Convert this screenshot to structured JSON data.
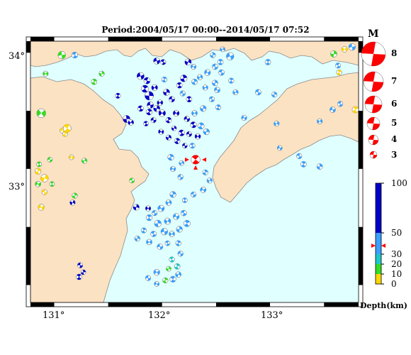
{
  "title": "Period:2004/05/17 00:00--2014/05/17 07:52",
  "lat_labels": [
    "34°",
    "33°"
  ],
  "lon_labels": [
    "131°",
    "132°",
    "133°"
  ],
  "legend": {
    "magnitude_header": "M",
    "magnitudes": [
      "8",
      "7",
      "6",
      "5",
      "4",
      "3"
    ],
    "depth_ticks": [
      "100",
      "50",
      "30",
      "20",
      "10",
      "0"
    ],
    "depth_unit": "Depth(km)"
  },
  "colors": {
    "land": "#fbe2c2",
    "sea": "#e0ffff",
    "coast": "#8a8a8a",
    "depth_0_10": "#ffd700",
    "depth_10_20": "#33dd22",
    "depth_20_30": "#1ec8c8",
    "depth_30_50": "#3aa0ff",
    "depth_50_100": "#0000c8",
    "highlight": "#ff0000"
  },
  "mechanisms": [
    {
      "lon": 130.92,
      "lat": 33.82,
      "m": 3.3,
      "depth": "green"
    },
    {
      "lon": 131.07,
      "lat": 33.98,
      "m": 3.9,
      "depth": "green"
    },
    {
      "lon": 131.19,
      "lat": 33.98,
      "m": 3.5,
      "depth": "lightblue"
    },
    {
      "lon": 131.37,
      "lat": 33.75,
      "m": 3.4,
      "depth": "green"
    },
    {
      "lon": 131.44,
      "lat": 33.82,
      "m": 3.3,
      "depth": "green"
    },
    {
      "lon": 130.88,
      "lat": 33.48,
      "m": 4.3,
      "depth": "green"
    },
    {
      "lon": 131.08,
      "lat": 33.33,
      "m": 3.4,
      "depth": "yellow"
    },
    {
      "lon": 131.12,
      "lat": 33.35,
      "m": 4.0,
      "depth": "yellow"
    },
    {
      "lon": 131.1,
      "lat": 33.3,
      "m": 3.2,
      "depth": "yellow"
    },
    {
      "lon": 131.28,
      "lat": 33.07,
      "m": 3.3,
      "depth": "green"
    },
    {
      "lon": 131.16,
      "lat": 33.1,
      "m": 3.2,
      "depth": "yellow"
    },
    {
      "lon": 130.96,
      "lat": 33.08,
      "m": 3.2,
      "depth": "green"
    },
    {
      "lon": 130.86,
      "lat": 33.04,
      "m": 3.2,
      "depth": "green"
    },
    {
      "lon": 130.85,
      "lat": 32.98,
      "m": 3.5,
      "depth": "yellow"
    },
    {
      "lon": 130.91,
      "lat": 32.92,
      "m": 3.9,
      "depth": "yellow"
    },
    {
      "lon": 130.85,
      "lat": 32.87,
      "m": 3.4,
      "depth": "green"
    },
    {
      "lon": 130.91,
      "lat": 32.8,
      "m": 3.3,
      "depth": "yellow"
    },
    {
      "lon": 130.98,
      "lat": 32.87,
      "m": 3.2,
      "depth": "green"
    },
    {
      "lon": 131.19,
      "lat": 32.77,
      "m": 3.3,
      "depth": "green"
    },
    {
      "lon": 131.17,
      "lat": 32.71,
      "m": 3.3,
      "depth": "blue"
    },
    {
      "lon": 130.88,
      "lat": 32.67,
      "m": 3.5,
      "depth": "yellow"
    },
    {
      "lon": 131.72,
      "lat": 32.9,
      "m": 3.2,
      "depth": "green"
    },
    {
      "lon": 131.59,
      "lat": 33.63,
      "m": 3.3,
      "depth": "blue"
    },
    {
      "lon": 131.67,
      "lat": 33.43,
      "m": 3.8,
      "depth": "blue"
    },
    {
      "lon": 131.71,
      "lat": 33.4,
      "m": 3.4,
      "depth": "blue"
    },
    {
      "lon": 131.8,
      "lat": 33.8,
      "m": 3.8,
      "depth": "blue"
    },
    {
      "lon": 131.86,
      "lat": 33.76,
      "m": 3.6,
      "depth": "blue"
    },
    {
      "lon": 131.84,
      "lat": 33.69,
      "m": 3.8,
      "depth": "blue"
    },
    {
      "lon": 131.88,
      "lat": 33.63,
      "m": 4.2,
      "depth": "blue"
    },
    {
      "lon": 131.93,
      "lat": 33.7,
      "m": 3.5,
      "depth": "blue"
    },
    {
      "lon": 131.95,
      "lat": 33.93,
      "m": 3.6,
      "depth": "blue"
    },
    {
      "lon": 132.01,
      "lat": 33.92,
      "m": 3.3,
      "depth": "blue"
    },
    {
      "lon": 132.02,
      "lat": 33.77,
      "m": 3.3,
      "depth": "lightblue"
    },
    {
      "lon": 132.04,
      "lat": 33.66,
      "m": 3.6,
      "depth": "blue"
    },
    {
      "lon": 131.98,
      "lat": 33.57,
      "m": 3.4,
      "depth": "blue"
    },
    {
      "lon": 131.89,
      "lat": 33.55,
      "m": 3.6,
      "depth": "blue"
    },
    {
      "lon": 131.8,
      "lat": 33.52,
      "m": 3.4,
      "depth": "blue"
    },
    {
      "lon": 131.88,
      "lat": 33.49,
      "m": 3.5,
      "depth": "blue"
    },
    {
      "lon": 131.95,
      "lat": 33.52,
      "m": 3.6,
      "depth": "blue"
    },
    {
      "lon": 132.0,
      "lat": 33.48,
      "m": 3.7,
      "depth": "blue"
    },
    {
      "lon": 131.92,
      "lat": 33.42,
      "m": 3.3,
      "depth": "blue"
    },
    {
      "lon": 131.85,
      "lat": 33.39,
      "m": 3.2,
      "depth": "blue"
    },
    {
      "lon": 132.06,
      "lat": 33.42,
      "m": 3.4,
      "depth": "blue"
    },
    {
      "lon": 132.11,
      "lat": 33.35,
      "m": 3.2,
      "depth": "blue"
    },
    {
      "lon": 132.13,
      "lat": 33.48,
      "m": 3.5,
      "depth": "blue"
    },
    {
      "lon": 132.09,
      "lat": 33.6,
      "m": 3.4,
      "depth": "blue"
    },
    {
      "lon": 132.16,
      "lat": 33.72,
      "m": 3.4,
      "depth": "blue"
    },
    {
      "lon": 132.2,
      "lat": 33.78,
      "m": 3.7,
      "depth": "blue"
    },
    {
      "lon": 132.24,
      "lat": 33.92,
      "m": 3.6,
      "depth": "blue"
    },
    {
      "lon": 132.29,
      "lat": 33.88,
      "m": 3.3,
      "depth": "lightblue"
    },
    {
      "lon": 132.19,
      "lat": 33.65,
      "m": 3.3,
      "depth": "lightblue"
    },
    {
      "lon": 132.25,
      "lat": 33.6,
      "m": 3.4,
      "depth": "blue"
    },
    {
      "lon": 132.3,
      "lat": 33.75,
      "m": 3.4,
      "depth": "lightblue"
    },
    {
      "lon": 132.35,
      "lat": 33.79,
      "m": 3.3,
      "depth": "lightblue"
    },
    {
      "lon": 132.42,
      "lat": 33.83,
      "m": 3.5,
      "depth": "lightblue"
    },
    {
      "lon": 132.49,
      "lat": 33.88,
      "m": 3.4,
      "depth": "lightblue"
    },
    {
      "lon": 132.54,
      "lat": 33.92,
      "m": 3.4,
      "depth": "lightblue"
    },
    {
      "lon": 132.47,
      "lat": 33.98,
      "m": 3.3,
      "depth": "lightblue"
    },
    {
      "lon": 132.56,
      "lat": 34.03,
      "m": 3.2,
      "depth": "lightblue"
    },
    {
      "lon": 132.63,
      "lat": 33.97,
      "m": 3.9,
      "depth": "lightblue"
    },
    {
      "lon": 132.55,
      "lat": 33.83,
      "m": 3.4,
      "depth": "lightblue"
    },
    {
      "lon": 132.64,
      "lat": 33.76,
      "m": 3.3,
      "depth": "lightblue"
    },
    {
      "lon": 132.49,
      "lat": 33.74,
      "m": 3.4,
      "depth": "lightblue"
    },
    {
      "lon": 132.4,
      "lat": 33.7,
      "m": 3.3,
      "depth": "lightblue"
    },
    {
      "lon": 132.51,
      "lat": 33.68,
      "m": 3.4,
      "depth": "lightblue"
    },
    {
      "lon": 132.46,
      "lat": 33.6,
      "m": 3.3,
      "depth": "lightblue"
    },
    {
      "lon": 132.52,
      "lat": 33.53,
      "m": 3.3,
      "depth": "lightblue"
    },
    {
      "lon": 132.38,
      "lat": 33.52,
      "m": 3.5,
      "depth": "lightblue"
    },
    {
      "lon": 132.3,
      "lat": 33.48,
      "m": 3.4,
      "depth": "lightblue"
    },
    {
      "lon": 132.23,
      "lat": 33.43,
      "m": 3.4,
      "depth": "blue"
    },
    {
      "lon": 132.29,
      "lat": 33.38,
      "m": 3.5,
      "depth": "blue"
    },
    {
      "lon": 132.36,
      "lat": 33.37,
      "m": 3.6,
      "depth": "lightblue"
    },
    {
      "lon": 132.41,
      "lat": 33.32,
      "m": 3.5,
      "depth": "lightblue"
    },
    {
      "lon": 132.33,
      "lat": 33.28,
      "m": 3.4,
      "depth": "blue"
    },
    {
      "lon": 132.25,
      "lat": 33.3,
      "m": 3.3,
      "depth": "blue"
    },
    {
      "lon": 132.18,
      "lat": 33.31,
      "m": 3.5,
      "depth": "blue"
    },
    {
      "lon": 132.14,
      "lat": 33.24,
      "m": 3.4,
      "depth": "blue"
    },
    {
      "lon": 132.06,
      "lat": 33.27,
      "m": 3.3,
      "depth": "blue"
    },
    {
      "lon": 131.99,
      "lat": 33.32,
      "m": 3.3,
      "depth": "blue"
    },
    {
      "lon": 132.21,
      "lat": 33.2,
      "m": 3.2,
      "depth": "blue"
    },
    {
      "lon": 132.28,
      "lat": 33.2,
      "m": 3.3,
      "depth": "lightblue"
    },
    {
      "lon": 132.08,
      "lat": 33.1,
      "m": 3.5,
      "depth": "lightblue"
    },
    {
      "lon": 132.18,
      "lat": 33.05,
      "m": 3.2,
      "depth": "lightblue"
    },
    {
      "lon": 132.1,
      "lat": 33.0,
      "m": 3.3,
      "depth": "lightblue"
    },
    {
      "lon": 132.17,
      "lat": 32.93,
      "m": 3.3,
      "depth": "lightblue"
    },
    {
      "lon": 132.31,
      "lat": 33.08,
      "m": 4.3,
      "depth": "highlight"
    },
    {
      "lon": 132.4,
      "lat": 32.97,
      "m": 3.3,
      "depth": "lightblue"
    },
    {
      "lon": 132.44,
      "lat": 32.9,
      "m": 3.3,
      "depth": "lightblue"
    },
    {
      "lon": 132.38,
      "lat": 32.82,
      "m": 3.4,
      "depth": "lightblue"
    },
    {
      "lon": 132.29,
      "lat": 32.78,
      "m": 3.3,
      "depth": "lightblue"
    },
    {
      "lon": 132.21,
      "lat": 32.73,
      "m": 3.2,
      "depth": "lightblue"
    },
    {
      "lon": 132.1,
      "lat": 32.78,
      "m": 3.5,
      "depth": "lightblue"
    },
    {
      "lon": 132.06,
      "lat": 32.71,
      "m": 3.4,
      "depth": "lightblue"
    },
    {
      "lon": 131.99,
      "lat": 32.66,
      "m": 3.6,
      "depth": "lightblue"
    },
    {
      "lon": 131.93,
      "lat": 32.62,
      "m": 3.3,
      "depth": "lightblue"
    },
    {
      "lon": 131.88,
      "lat": 32.58,
      "m": 3.5,
      "depth": "lightblue"
    },
    {
      "lon": 131.96,
      "lat": 32.53,
      "m": 3.7,
      "depth": "lightblue"
    },
    {
      "lon": 132.05,
      "lat": 32.55,
      "m": 3.6,
      "depth": "lightblue"
    },
    {
      "lon": 132.13,
      "lat": 32.59,
      "m": 3.5,
      "depth": "lightblue"
    },
    {
      "lon": 132.2,
      "lat": 32.62,
      "m": 3.4,
      "depth": "lightblue"
    },
    {
      "lon": 132.23,
      "lat": 32.53,
      "m": 3.6,
      "depth": "lightblue"
    },
    {
      "lon": 132.16,
      "lat": 32.48,
      "m": 3.5,
      "depth": "lightblue"
    },
    {
      "lon": 132.09,
      "lat": 32.44,
      "m": 3.4,
      "depth": "lightblue"
    },
    {
      "lon": 132.02,
      "lat": 32.46,
      "m": 3.7,
      "depth": "lightblue"
    },
    {
      "lon": 131.92,
      "lat": 32.44,
      "m": 3.4,
      "depth": "lightblue"
    },
    {
      "lon": 131.83,
      "lat": 32.47,
      "m": 3.3,
      "depth": "lightblue"
    },
    {
      "lon": 131.77,
      "lat": 32.4,
      "m": 3.3,
      "depth": "lightblue"
    },
    {
      "lon": 131.88,
      "lat": 32.37,
      "m": 3.4,
      "depth": "lightblue"
    },
    {
      "lon": 131.98,
      "lat": 32.33,
      "m": 3.4,
      "depth": "lightblue"
    },
    {
      "lon": 132.05,
      "lat": 32.36,
      "m": 3.2,
      "depth": "lightblue"
    },
    {
      "lon": 132.15,
      "lat": 32.36,
      "m": 3.3,
      "depth": "lightblue"
    },
    {
      "lon": 131.76,
      "lat": 32.67,
      "m": 3.5,
      "depth": "blue"
    },
    {
      "lon": 131.87,
      "lat": 32.66,
      "m": 3.3,
      "depth": "blue"
    },
    {
      "lon": 132.17,
      "lat": 32.27,
      "m": 3.3,
      "depth": "lightblue"
    },
    {
      "lon": 132.09,
      "lat": 32.22,
      "m": 3.3,
      "depth": "cyan"
    },
    {
      "lon": 132.14,
      "lat": 32.16,
      "m": 3.4,
      "depth": "cyan"
    },
    {
      "lon": 132.06,
      "lat": 32.14,
      "m": 3.2,
      "depth": "green"
    },
    {
      "lon": 131.95,
      "lat": 32.11,
      "m": 3.5,
      "depth": "lightblue"
    },
    {
      "lon": 131.87,
      "lat": 32.06,
      "m": 3.3,
      "depth": "lightblue"
    },
    {
      "lon": 132.1,
      "lat": 32.05,
      "m": 3.5,
      "depth": "lightblue"
    },
    {
      "lon": 132.03,
      "lat": 32.04,
      "m": 3.3,
      "depth": "green"
    },
    {
      "lon": 132.15,
      "lat": 32.09,
      "m": 3.4,
      "depth": "lightblue"
    },
    {
      "lon": 131.95,
      "lat": 32.01,
      "m": 3.2,
      "depth": "lightblue"
    },
    {
      "lon": 131.24,
      "lat": 32.17,
      "m": 3.3,
      "depth": "blue"
    },
    {
      "lon": 131.23,
      "lat": 32.07,
      "m": 3.4,
      "depth": "blue"
    },
    {
      "lon": 131.27,
      "lat": 32.11,
      "m": 3.2,
      "depth": "blue"
    },
    {
      "lon": 132.68,
      "lat": 33.66,
      "m": 3.3,
      "depth": "lightblue"
    },
    {
      "lon": 132.76,
      "lat": 33.44,
      "m": 3.3,
      "depth": "lightblue"
    },
    {
      "lon": 132.89,
      "lat": 33.66,
      "m": 3.4,
      "depth": "lightblue"
    },
    {
      "lon": 132.98,
      "lat": 33.92,
      "m": 3.4,
      "depth": "lightblue"
    },
    {
      "lon": 133.04,
      "lat": 33.64,
      "m": 3.3,
      "depth": "lightblue"
    },
    {
      "lon": 133.06,
      "lat": 33.39,
      "m": 3.3,
      "depth": "lightblue"
    },
    {
      "lon": 133.09,
      "lat": 33.18,
      "m": 3.2,
      "depth": "lightblue"
    },
    {
      "lon": 133.27,
      "lat": 33.11,
      "m": 3.3,
      "depth": "lightblue"
    },
    {
      "lon": 133.31,
      "lat": 33.04,
      "m": 3.4,
      "depth": "lightblue"
    },
    {
      "lon": 133.46,
      "lat": 33.02,
      "m": 3.4,
      "depth": "lightblue"
    },
    {
      "lon": 133.46,
      "lat": 33.41,
      "m": 3.3,
      "depth": "lightblue"
    },
    {
      "lon": 133.58,
      "lat": 33.51,
      "m": 3.4,
      "depth": "lightblue"
    },
    {
      "lon": 133.65,
      "lat": 33.56,
      "m": 3.3,
      "depth": "lightblue"
    },
    {
      "lon": 133.79,
      "lat": 33.51,
      "m": 3.6,
      "depth": "yellow"
    },
    {
      "lon": 133.59,
      "lat": 33.99,
      "m": 3.6,
      "depth": "green"
    },
    {
      "lon": 133.69,
      "lat": 34.03,
      "m": 3.4,
      "depth": "yellow"
    },
    {
      "lon": 133.76,
      "lat": 34.05,
      "m": 3.7,
      "depth": "lightblue"
    },
    {
      "lon": 133.63,
      "lat": 33.89,
      "m": 3.3,
      "depth": "lightblue"
    },
    {
      "lon": 133.64,
      "lat": 33.83,
      "m": 3.3,
      "depth": "yellow"
    }
  ]
}
